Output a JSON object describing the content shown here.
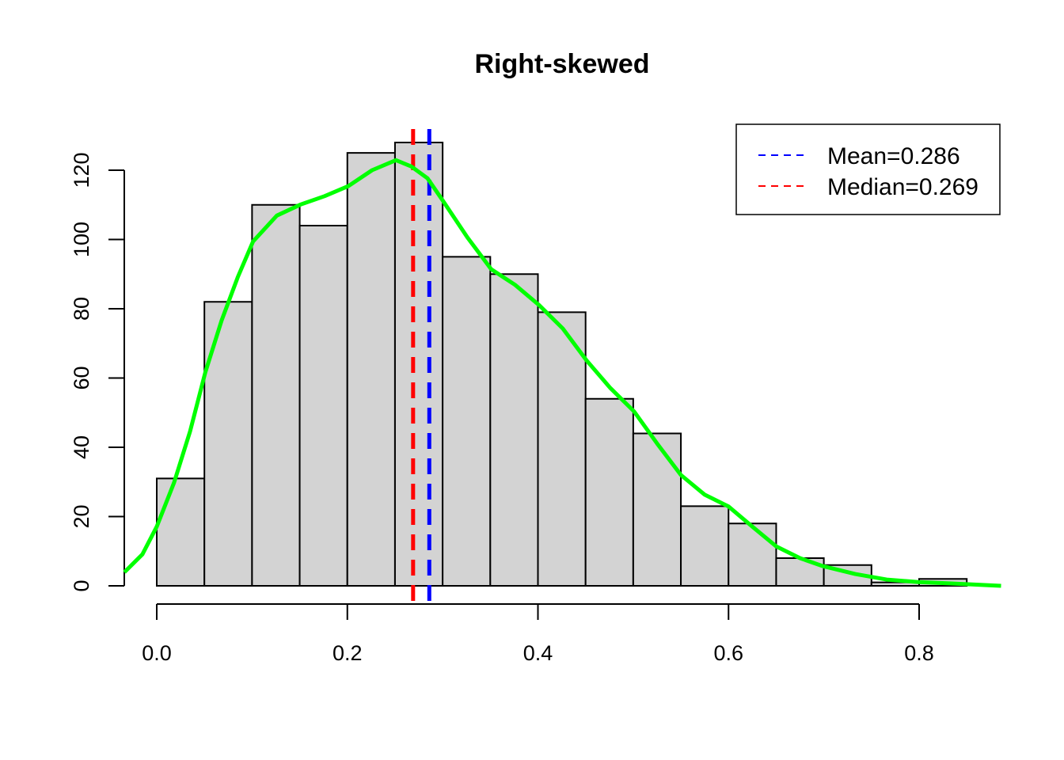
{
  "chart_data": {
    "type": "bar",
    "title": "Right-skewed",
    "xlabel": "",
    "ylabel": "",
    "bin_width": 0.05,
    "bin_starts": [
      0,
      0.05,
      0.1,
      0.15,
      0.2,
      0.25,
      0.3,
      0.35,
      0.4,
      0.45,
      0.5,
      0.55,
      0.6,
      0.65,
      0.7,
      0.75,
      0.8
    ],
    "values": [
      31,
      82,
      110,
      104,
      125,
      128,
      95,
      90,
      79,
      54,
      44,
      23,
      18,
      8,
      6,
      1,
      2
    ],
    "xlim": [
      -0.034,
      0.886
    ],
    "ylim": [
      0,
      128
    ],
    "x_ticks": [
      0,
      0.2,
      0.4,
      0.6,
      0.8
    ],
    "x_tick_labels": [
      "0.0",
      "0.2",
      "0.4",
      "0.6",
      "0.8"
    ],
    "y_ticks": [
      0,
      20,
      40,
      60,
      80,
      100,
      120
    ],
    "y_tick_labels": [
      "0",
      "20",
      "40",
      "60",
      "80",
      "100",
      "120"
    ],
    "density_curve": {
      "color": "#00FF00",
      "x": [
        -0.034,
        -0.015,
        0,
        0.018,
        0.035,
        0.051,
        0.068,
        0.085,
        0.101,
        0.126,
        0.151,
        0.176,
        0.201,
        0.226,
        0.251,
        0.267,
        0.284,
        0.301,
        0.326,
        0.351,
        0.376,
        0.401,
        0.426,
        0.451,
        0.476,
        0.501,
        0.525,
        0.55,
        0.575,
        0.6,
        0.625,
        0.65,
        0.675,
        0.699,
        0.733,
        0.766,
        0.799,
        0.832,
        0.886
      ],
      "y": [
        3.9,
        9.1,
        17.1,
        29.7,
        44.6,
        61.7,
        76.6,
        89.1,
        99.4,
        106.9,
        110.1,
        112.5,
        115.4,
        120,
        122.9,
        121.1,
        117.7,
        110.9,
        100.6,
        91.4,
        86.9,
        81.1,
        74.3,
        65.1,
        57.1,
        50.3,
        41.1,
        32,
        26.3,
        22.9,
        17.1,
        11.4,
        8,
        5.7,
        3.4,
        1.8,
        1.1,
        0.7,
        0
      ]
    },
    "vlines": [
      {
        "name": "mean",
        "value": 0.286,
        "color": "#0000FF"
      },
      {
        "name": "median",
        "value": 0.269,
        "color": "#FF0000"
      }
    ],
    "legend": {
      "position": "top-right",
      "entries": [
        {
          "label": "Mean=0.286",
          "color": "#0000FF"
        },
        {
          "label": "Median=0.269",
          "color": "#FF0000"
        }
      ]
    },
    "bar_color": "#D3D3D3",
    "grid": false
  }
}
